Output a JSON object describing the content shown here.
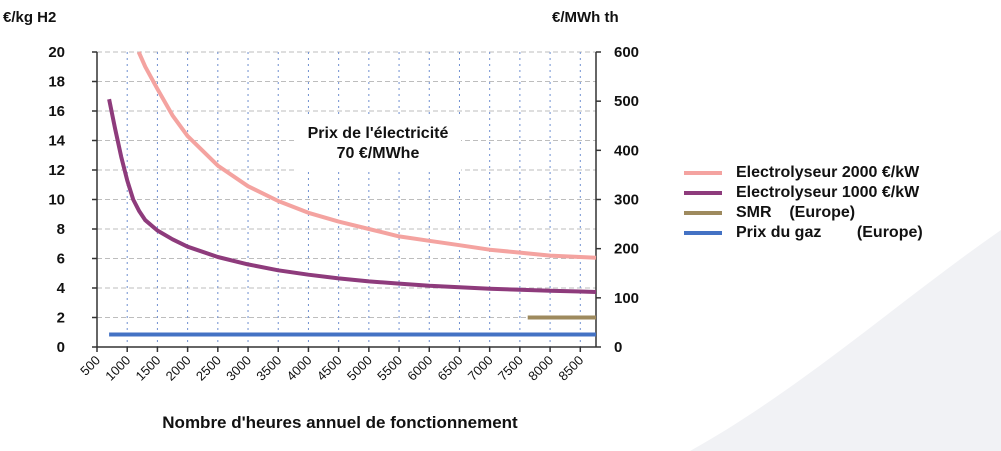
{
  "chart_data": {
    "type": "line",
    "y_left_label": "€/kg H2",
    "y_right_label": "€/MWh th",
    "xlabel": "Nombre d'heures annuel de fonctionnement",
    "annotation": [
      "Prix de l'électricité",
      "70 €/MWhe"
    ],
    "ylim_left": [
      0,
      20
    ],
    "ylim_right": [
      0,
      600
    ],
    "y_left_ticks": [
      0,
      2,
      4,
      6,
      8,
      10,
      12,
      14,
      16,
      18,
      20
    ],
    "y_right_ticks": [
      0,
      100,
      200,
      300,
      400,
      500,
      600
    ],
    "xlim": [
      500,
      8760
    ],
    "x_ticks": [
      500,
      1000,
      1500,
      2000,
      2500,
      3000,
      3500,
      4000,
      4500,
      5000,
      5500,
      6000,
      6500,
      7000,
      7500,
      8000,
      8500
    ],
    "grid": true,
    "legend_position": "right",
    "series": [
      {
        "name": "Electrolyseur 2000 €/kW",
        "color": "#f4a3a0",
        "x": [
          1190,
          1300,
          1500,
          1750,
          2000,
          2500,
          3000,
          3500,
          4000,
          4500,
          5000,
          5500,
          6000,
          6500,
          7000,
          7500,
          8000,
          8500,
          8760
        ],
        "y": [
          20,
          19.0,
          17.5,
          15.7,
          14.3,
          12.3,
          10.9,
          9.9,
          9.1,
          8.5,
          8.0,
          7.5,
          7.2,
          6.9,
          6.6,
          6.4,
          6.2,
          6.1,
          6.05
        ]
      },
      {
        "name": "Electrolyseur 1000 €/kW",
        "color": "#8e3b7c",
        "x": [
          700,
          800,
          900,
          1000,
          1100,
          1200,
          1300,
          1500,
          1750,
          2000,
          2500,
          3000,
          3500,
          4000,
          4500,
          5000,
          5500,
          6000,
          6500,
          7000,
          7500,
          8000,
          8500,
          8760
        ],
        "y": [
          16.8,
          14.8,
          12.9,
          11.3,
          10.0,
          9.2,
          8.6,
          7.9,
          7.3,
          6.8,
          6.1,
          5.6,
          5.2,
          4.9,
          4.65,
          4.45,
          4.3,
          4.15,
          4.05,
          3.95,
          3.88,
          3.82,
          3.76,
          3.73
        ]
      },
      {
        "name": "SMR    (Europe)",
        "color": "#9e8a5e",
        "x": [
          7630,
          8760
        ],
        "y": [
          2.0,
          2.0
        ]
      },
      {
        "name": "Prix du gaz        (Europe)",
        "color": "#4472c4",
        "x": [
          700,
          8760
        ],
        "y": [
          0.85,
          0.85
        ]
      }
    ]
  }
}
